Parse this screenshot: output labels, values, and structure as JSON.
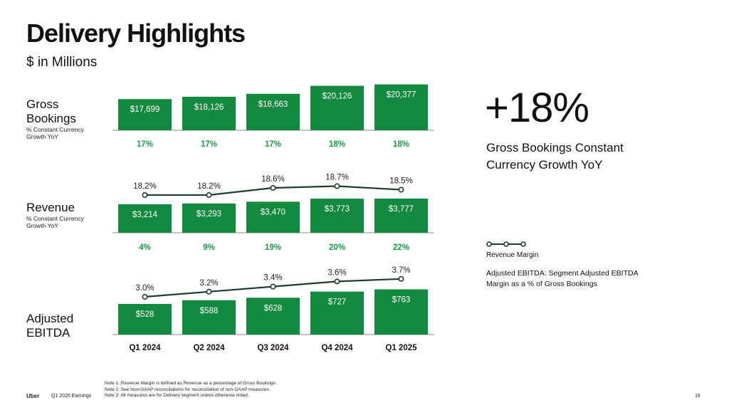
{
  "page": {
    "title": "Delivery Highlights",
    "subtitle": "$ in Millions"
  },
  "sections": {
    "gross_bookings": {
      "label_line1": "Gross",
      "label_line2": "Bookings",
      "sub_line1": "% Constant Currency",
      "sub_line2": "Growth YoY"
    },
    "revenue": {
      "label": "Revenue",
      "sub_line1": "% Constant Currency",
      "sub_line2": "Growth YoY"
    },
    "ebitda": {
      "label_line1": "Adjusted",
      "label_line2": "EBITDA"
    }
  },
  "kpi": {
    "value": "+18%",
    "caption": "Gross Bookings Constant Currency Growth YoY"
  },
  "legend": {
    "line_label": "Revenue Margin",
    "note": "Adjusted EBITDA: Segment Adjusted EBITDA Margin as a % of Gross Bookings"
  },
  "notes": [
    "Note 1: Revenue Margin is defined as Revenue as a percentage of Gross Bookings.",
    "Note 2: See Non-GAAP reconciliations for reconciliation of non-GAAP measures.",
    "Note 3: All measures are for Delivery segment unless otherwise noted."
  ],
  "footer": {
    "brand": "Uber",
    "report": "Q1 2025 Earnings",
    "page_number": "16"
  },
  "colors": {
    "bar": "#138a3e",
    "growth_text": "#1a9b45",
    "line": "#1f3d2b"
  },
  "chart_data": [
    {
      "type": "bar",
      "name": "Gross Bookings",
      "categories": [
        "Q1 2024",
        "Q2 2024",
        "Q3 2024",
        "Q4 2024",
        "Q1 2025"
      ],
      "values": [
        17699,
        18126,
        18663,
        20126,
        20377
      ],
      "value_labels": [
        "$17,699",
        "$18,126",
        "$18,663",
        "$20,126",
        "$20,377"
      ],
      "growth_labels": [
        "17%",
        "17%",
        "17%",
        "18%",
        "18%"
      ]
    },
    {
      "type": "bar",
      "name": "Revenue",
      "categories": [
        "Q1 2024",
        "Q2 2024",
        "Q3 2024",
        "Q4 2024",
        "Q1 2025"
      ],
      "values": [
        3214,
        3293,
        3470,
        3773,
        3777
      ],
      "value_labels": [
        "$3,214",
        "$3,293",
        "$3,470",
        "$3,773",
        "$3,777"
      ],
      "growth_labels": [
        "4%",
        "9%",
        "19%",
        "20%",
        "22%"
      ],
      "line": {
        "name": "Revenue Margin",
        "values": [
          18.2,
          18.2,
          18.6,
          18.7,
          18.5
        ],
        "labels": [
          "18.2%",
          "18.2%",
          "18.6%",
          "18.7%",
          "18.5%"
        ]
      }
    },
    {
      "type": "bar",
      "name": "Adjusted EBITDA",
      "categories": [
        "Q1 2024",
        "Q2 2024",
        "Q3 2024",
        "Q4 2024",
        "Q1 2025"
      ],
      "values": [
        528,
        588,
        628,
        727,
        763
      ],
      "value_labels": [
        "$528",
        "$588",
        "$628",
        "$727",
        "$763"
      ],
      "line": {
        "name": "Adjusted EBITDA Margin",
        "values": [
          3.0,
          3.2,
          3.4,
          3.6,
          3.7
        ],
        "labels": [
          "3.0%",
          "3.2%",
          "3.4%",
          "3.6%",
          "3.7%"
        ]
      }
    }
  ]
}
